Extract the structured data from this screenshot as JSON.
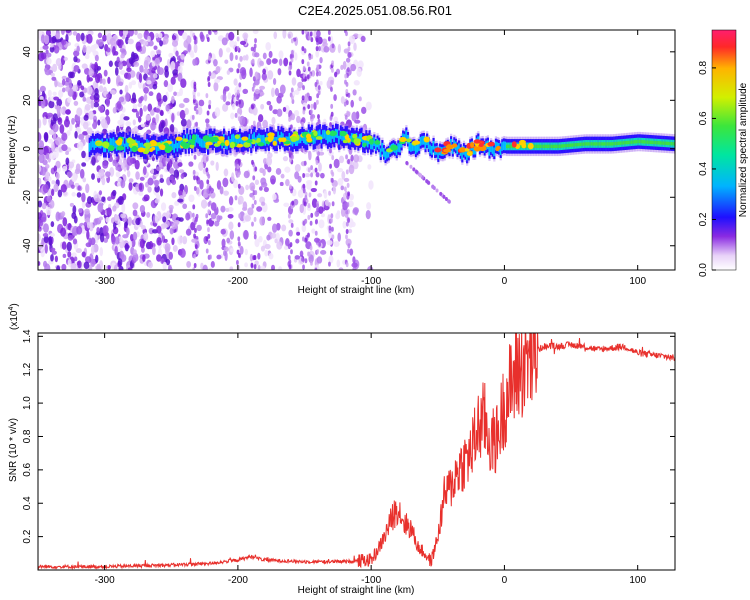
{
  "title": "C2E4.2025.051.08.56.R01",
  "chart_data": [
    {
      "type": "heatmap",
      "xlabel": "Height of straight line (km)",
      "ylabel": "Frequency (Hz)",
      "xlim": [
        -350,
        128
      ],
      "ylim": [
        -50,
        49
      ],
      "xticks": [
        -300,
        -200,
        -100,
        0,
        100
      ],
      "yticks": [
        -40,
        -20,
        0,
        20,
        40
      ],
      "ridge": {
        "x": [
          -310,
          -290,
          -270,
          -250,
          -240,
          -220,
          -200,
          -180,
          -160,
          -140,
          -120,
          -100,
          -90,
          -80,
          -75,
          -70,
          -60,
          -50,
          -40,
          -30,
          -20,
          -10,
          0,
          20,
          40,
          60,
          80,
          100,
          128
        ],
        "y": [
          1,
          2,
          1,
          1,
          3,
          3,
          3,
          4,
          4,
          5,
          5,
          3,
          -2,
          1,
          6,
          0,
          3,
          -2,
          1,
          -2,
          2,
          0,
          1,
          1,
          1,
          2,
          2,
          3,
          2
        ]
      },
      "colorbar": {
        "label": "Normalized spectral amplitude",
        "ticks": [
          "0.0",
          "0.2",
          "0.4",
          "0.6",
          "0.8"
        ],
        "range": [
          0,
          0.95
        ]
      },
      "grid": false
    },
    {
      "type": "line",
      "xlabel": "Height of straight line (km)",
      "ylabel": "SNR (10 * v/v)",
      "exponent_label": "(x10",
      "exponent_value": "4",
      "exponent_close": ")",
      "xlim": [
        -350,
        128
      ],
      "ylim": [
        0,
        1.42
      ],
      "xticks": [
        -300,
        -200,
        -100,
        0,
        100
      ],
      "yticks": [
        "0.2",
        "0.4",
        "0.6",
        "0.8",
        "1.0",
        "1.2",
        "1.4"
      ],
      "series": [
        {
          "color": "#e8302c",
          "x": [
            -350,
            -300,
            -250,
            -220,
            -200,
            -190,
            -180,
            -150,
            -120,
            -100,
            -95,
            -90,
            -85,
            -80,
            -75,
            -70,
            -65,
            -60,
            -55,
            -50,
            -45,
            -40,
            -35,
            -30,
            -25,
            -20,
            -15,
            -10,
            -5,
            0,
            5,
            10,
            15,
            20,
            25,
            30,
            40,
            50,
            60,
            70,
            80,
            90,
            100,
            110,
            120,
            128
          ],
          "y": [
            0.02,
            0.02,
            0.03,
            0.04,
            0.06,
            0.08,
            0.06,
            0.05,
            0.05,
            0.06,
            0.12,
            0.2,
            0.3,
            0.38,
            0.28,
            0.25,
            0.14,
            0.1,
            0.05,
            0.2,
            0.45,
            0.5,
            0.6,
            0.65,
            0.7,
            0.85,
            0.9,
            0.75,
            0.8,
            1.0,
            1.1,
            1.2,
            1.24,
            1.28,
            1.32,
            1.34,
            1.34,
            1.35,
            1.34,
            1.32,
            1.33,
            1.34,
            1.3,
            1.29,
            1.28,
            1.27
          ]
        }
      ],
      "grid": false
    }
  ]
}
